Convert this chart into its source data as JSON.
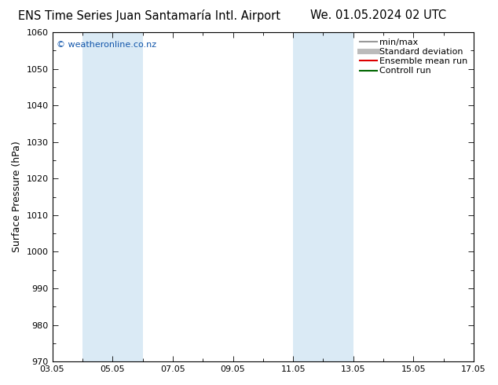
{
  "title_left": "ENS Time Series Juan Santamaría Intl. Airport",
  "title_right": "We. 01.05.2024 02 UTC",
  "ylabel": "Surface Pressure (hPa)",
  "ylim": [
    970,
    1060
  ],
  "yticks": [
    970,
    980,
    990,
    1000,
    1010,
    1020,
    1030,
    1040,
    1050,
    1060
  ],
  "xlim": [
    0,
    14
  ],
  "xtick_labels": [
    "03.05",
    "05.05",
    "07.05",
    "09.05",
    "11.05",
    "13.05",
    "15.05",
    "17.05"
  ],
  "xtick_positions": [
    0,
    2,
    4,
    6,
    8,
    10,
    12,
    14
  ],
  "shaded_bands": [
    {
      "x_start": 1.0,
      "x_end": 3.0,
      "color": "#daeaf5"
    },
    {
      "x_start": 8.0,
      "x_end": 10.0,
      "color": "#daeaf5"
    }
  ],
  "watermark": "© weatheronline.co.nz",
  "watermark_color": "#1155aa",
  "background_color": "#ffffff",
  "legend_items": [
    {
      "label": "min/max",
      "color": "#999999",
      "lw": 1.5
    },
    {
      "label": "Standard deviation",
      "color": "#bbbbbb",
      "lw": 5
    },
    {
      "label": "Ensemble mean run",
      "color": "#dd0000",
      "lw": 1.5
    },
    {
      "label": "Controll run",
      "color": "#006600",
      "lw": 1.5
    }
  ],
  "title_fontsize": 10.5,
  "axis_label_fontsize": 9,
  "tick_fontsize": 8,
  "legend_fontsize": 8,
  "watermark_fontsize": 8
}
